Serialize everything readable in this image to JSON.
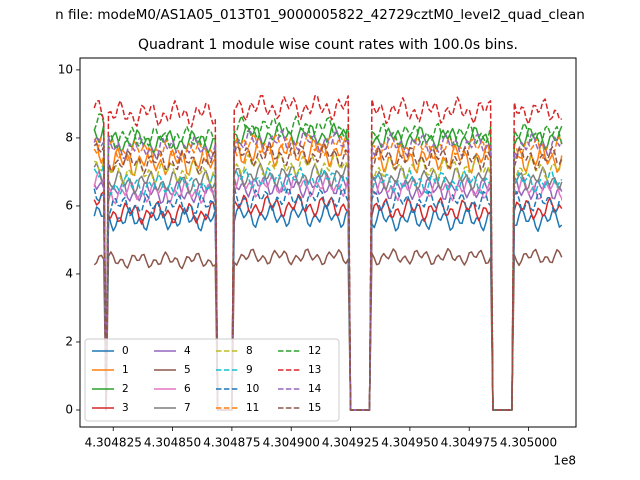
{
  "chart_data": {
    "type": "line",
    "suptitle": "n file: modeM0/AS1A05_013T01_9000005822_42729cztM0_level2_quad_clean",
    "title": "Quadrant 1 module wise count rates with 100.0s bins.",
    "xlabel": "",
    "ylabel": "",
    "x_offset_label": "1e8",
    "xlim": [
      430481100,
      430502000
    ],
    "ylim": [
      -0.5,
      10.35
    ],
    "grid": false,
    "legend": {
      "placement": "lower-left",
      "columns": 4
    },
    "x_ticks": [
      {
        "value": 430482500,
        "label": "4.304825"
      },
      {
        "value": 430485000,
        "label": "4.304850"
      },
      {
        "value": 430487500,
        "label": "4.304875"
      },
      {
        "value": 430490000,
        "label": "4.304900"
      },
      {
        "value": 430492500,
        "label": "4.304925"
      },
      {
        "value": 430495000,
        "label": "4.304950"
      },
      {
        "value": 430497500,
        "label": "4.304975"
      },
      {
        "value": 430500000,
        "label": "4.305000"
      }
    ],
    "y_ticks": [
      {
        "value": 0,
        "label": "0"
      },
      {
        "value": 2,
        "label": "2"
      },
      {
        "value": 4,
        "label": "4"
      },
      {
        "value": 6,
        "label": "6"
      },
      {
        "value": 8,
        "label": "8"
      },
      {
        "value": 10,
        "label": "10"
      }
    ],
    "x_start": 430481700,
    "x_step": 100,
    "gap_ranges": [
      [
        430482150,
        430482250
      ],
      [
        430486900,
        430487550
      ],
      [
        430492500,
        430493300
      ],
      [
        430498500,
        430499300
      ]
    ],
    "gap_value": 0,
    "series": [
      {
        "name": "0",
        "color": "#1f77b4",
        "dash": "solid",
        "segment_means": [
          5.7,
          5.6,
          5.7,
          5.6
        ],
        "amplitude": 0.35
      },
      {
        "name": "1",
        "color": "#ff7f0e",
        "dash": "solid",
        "segment_means": [
          7.6,
          7.3,
          7.6,
          7.4
        ],
        "amplitude": 0.45
      },
      {
        "name": "2",
        "color": "#2ca02c",
        "dash": "solid",
        "segment_means": [
          8.2,
          7.9,
          8.1,
          8.0
        ],
        "amplitude": 0.35
      },
      {
        "name": "3",
        "color": "#d62728",
        "dash": "solid",
        "segment_means": [
          6.1,
          5.8,
          6.0,
          5.9
        ],
        "amplitude": 0.35
      },
      {
        "name": "4",
        "color": "#9467bd",
        "dash": "solid",
        "segment_means": [
          6.6,
          6.4,
          6.6,
          6.5
        ],
        "amplitude": 0.35
      },
      {
        "name": "5",
        "color": "#8c564b",
        "dash": "solid",
        "segment_means": [
          4.5,
          4.4,
          4.5,
          4.5
        ],
        "amplitude": 0.25
      },
      {
        "name": "6",
        "color": "#e377c2",
        "dash": "solid",
        "segment_means": [
          6.7,
          6.4,
          6.6,
          6.5
        ],
        "amplitude": 0.35
      },
      {
        "name": "7",
        "color": "#7f7f7f",
        "dash": "solid",
        "segment_means": [
          7.0,
          6.7,
          6.9,
          6.8
        ],
        "amplitude": 0.35
      },
      {
        "name": "8",
        "color": "#bcbd22",
        "dash": "dashed",
        "segment_means": [
          7.3,
          7.0,
          7.2,
          7.1
        ],
        "amplitude": 0.35
      },
      {
        "name": "9",
        "color": "#17becf",
        "dash": "dashed",
        "segment_means": [
          6.9,
          6.6,
          6.8,
          6.7
        ],
        "amplitude": 0.35
      },
      {
        "name": "10",
        "color": "#1f77b4",
        "dash": "dashed",
        "segment_means": [
          6.3,
          6.0,
          6.2,
          6.1
        ],
        "amplitude": 0.35
      },
      {
        "name": "11",
        "color": "#ff7f0e",
        "dash": "dashed",
        "segment_means": [
          7.9,
          7.6,
          7.8,
          7.7
        ],
        "amplitude": 0.35
      },
      {
        "name": "12",
        "color": "#2ca02c",
        "dash": "dashed",
        "segment_means": [
          8.4,
          8.0,
          8.3,
          8.1
        ],
        "amplitude": 0.35
      },
      {
        "name": "13",
        "color": "#d62728",
        "dash": "dashed",
        "segment_means": [
          8.9,
          8.7,
          8.9,
          8.8
        ],
        "amplitude": 0.4
      },
      {
        "name": "14",
        "color": "#9467bd",
        "dash": "dashed",
        "segment_means": [
          8.0,
          7.7,
          7.9,
          7.8
        ],
        "amplitude": 0.35
      },
      {
        "name": "15",
        "color": "#8c564b",
        "dash": "dashed",
        "segment_means": [
          7.6,
          7.3,
          7.5,
          7.4
        ],
        "amplitude": 0.35
      }
    ]
  }
}
